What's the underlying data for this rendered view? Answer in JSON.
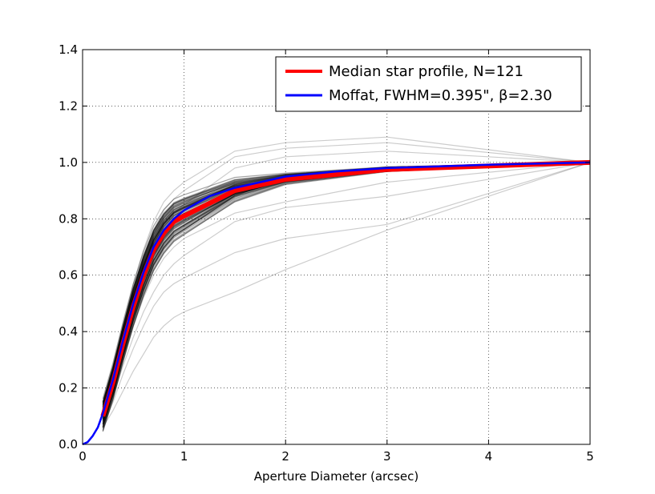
{
  "chart_data": {
    "type": "line",
    "title": "",
    "xlabel": "Aperture Diameter (arcsec)",
    "ylabel": "",
    "xlim": [
      0,
      5
    ],
    "ylim": [
      0,
      1.4
    ],
    "grid": true,
    "grid_style": "dotted",
    "legend_position": "top-right",
    "x_ticks": [
      0,
      1,
      2,
      3,
      4,
      5
    ],
    "x_tick_labels": [
      "0",
      "1",
      "2",
      "3",
      "4",
      "5"
    ],
    "y_ticks": [
      0,
      0.2,
      0.4,
      0.6,
      0.8,
      1.0,
      1.2,
      1.4
    ],
    "y_tick_labels": [
      "0.0",
      "0.2",
      "0.4",
      "0.6",
      "0.8",
      "1.0",
      "1.2",
      "1.4"
    ],
    "colors": {
      "median": "#ff0000",
      "moffat": "#0000ff",
      "stars": "#000000"
    },
    "aperture_x": [
      0.2,
      0.3,
      0.4,
      0.5,
      0.6,
      0.7,
      0.8,
      0.9,
      1.0,
      1.5,
      2.0,
      3.0,
      5.0
    ],
    "median_profile": {
      "name": "Median star profile, N=121",
      "values": [
        0.1,
        0.22,
        0.36,
        0.49,
        0.6,
        0.69,
        0.75,
        0.79,
        0.81,
        0.9,
        0.94,
        0.975,
        1.0
      ]
    },
    "moffat_fit": {
      "name": "Moffat, FWHM=0.395\", β=2.30",
      "x": [
        0,
        0.05,
        0.1,
        0.15,
        0.2,
        0.3,
        0.4,
        0.5,
        0.6,
        0.7,
        0.8,
        0.9,
        1.0,
        1.25,
        1.5,
        2.0,
        2.5,
        3.0,
        4.0,
        5.0
      ],
      "values": [
        0,
        0.008,
        0.03,
        0.06,
        0.11,
        0.23,
        0.37,
        0.5,
        0.61,
        0.7,
        0.76,
        0.8,
        0.83,
        0.88,
        0.91,
        0.95,
        0.968,
        0.98,
        0.992,
        1.0
      ]
    },
    "star_profile_shapes": {
      "shared_x": [
        0.2,
        0.3,
        0.4,
        0.5,
        0.6,
        0.7,
        0.8,
        0.9,
        1.0,
        1.5,
        2.0,
        3.0,
        5.0
      ],
      "count": 121,
      "outliers": [
        [
          0.06,
          0.12,
          0.19,
          0.26,
          0.32,
          0.38,
          0.42,
          0.45,
          0.47,
          0.54,
          0.62,
          0.76,
          1.0
        ],
        [
          0.07,
          0.15,
          0.25,
          0.34,
          0.42,
          0.49,
          0.54,
          0.57,
          0.59,
          0.68,
          0.73,
          0.78,
          1.0
        ],
        [
          0.08,
          0.17,
          0.28,
          0.38,
          0.47,
          0.54,
          0.6,
          0.64,
          0.67,
          0.79,
          0.84,
          0.88,
          1.0
        ],
        [
          0.12,
          0.26,
          0.42,
          0.57,
          0.69,
          0.79,
          0.86,
          0.9,
          0.93,
          1.04,
          1.07,
          1.09,
          1.0
        ],
        [
          0.11,
          0.25,
          0.4,
          0.54,
          0.66,
          0.76,
          0.83,
          0.87,
          0.9,
          1.02,
          1.05,
          1.07,
          1.0
        ],
        [
          0.09,
          0.19,
          0.31,
          0.42,
          0.52,
          0.6,
          0.66,
          0.7,
          0.73,
          0.82,
          0.86,
          0.93,
          1.0
        ],
        [
          0.1,
          0.23,
          0.38,
          0.51,
          0.62,
          0.71,
          0.78,
          0.82,
          0.85,
          0.98,
          1.02,
          1.04,
          1.0
        ]
      ]
    }
  }
}
